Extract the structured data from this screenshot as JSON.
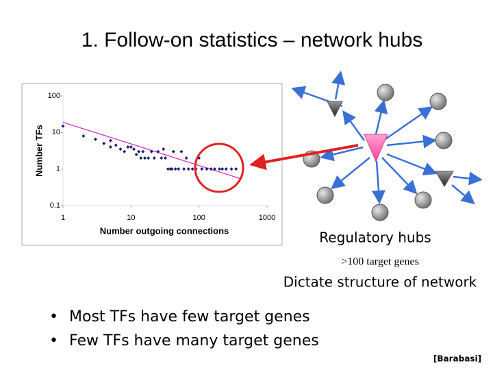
{
  "slide": {
    "title": "1. Follow-on statistics – network hubs",
    "hub_caption": "Regulatory hubs",
    "hub_subcaption": ">100 target genes",
    "structure_caption": "Dictate structure of network",
    "bullets": [
      "Most TFs have few target genes",
      "Few TFs have many target genes"
    ],
    "citation": "[Barabasi]"
  },
  "chart_data": {
    "type": "scatter",
    "x_label": "Number outgoing connections",
    "y_label": "Number TFs",
    "x": [
      1,
      2,
      3,
      4,
      5,
      5,
      6,
      7,
      8,
      9,
      10,
      11,
      12,
      13,
      14,
      15,
      16,
      18,
      20,
      22,
      25,
      28,
      30,
      32,
      35,
      38,
      40,
      42,
      45,
      50,
      55,
      60,
      65,
      70,
      80,
      90,
      100,
      110,
      130,
      150,
      170,
      200,
      220,
      250,
      300,
      350
    ],
    "values": [
      15,
      8,
      6.5,
      5,
      4,
      6,
      4.5,
      3.5,
      3,
      4,
      4,
      3.5,
      2.5,
      3,
      2,
      3,
      2,
      2,
      3,
      2,
      3,
      2,
      3.5,
      2,
      1,
      1,
      1,
      3,
      1,
      1,
      3,
      1,
      2,
      1,
      1,
      1,
      2,
      1,
      1,
      1,
      1,
      1,
      1,
      1,
      1,
      1
    ],
    "color": "#1c1c6a",
    "trend": {
      "x": [
        1,
        400
      ],
      "values": [
        19,
        0.55
      ],
      "color": "#cc33cc"
    },
    "log_x": true,
    "log_y": true,
    "xlim": [
      1,
      1000
    ],
    "xticks": [
      1,
      10,
      100,
      1000
    ],
    "ylim": [
      0.1,
      100
    ],
    "yticks": [
      0.1,
      1,
      10,
      100
    ]
  }
}
